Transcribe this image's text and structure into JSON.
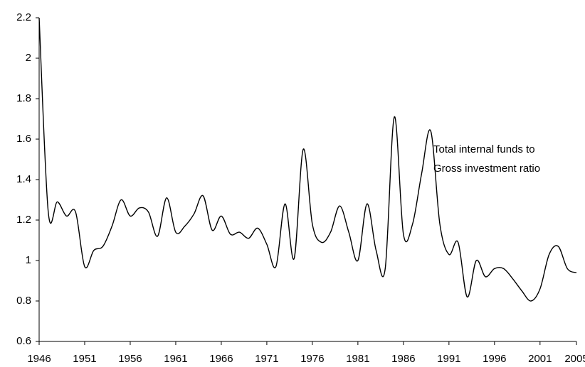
{
  "chart_data": {
    "type": "line",
    "x": [
      1946,
      1947,
      1948,
      1949,
      1950,
      1951,
      1952,
      1953,
      1954,
      1955,
      1956,
      1957,
      1958,
      1959,
      1960,
      1961,
      1962,
      1963,
      1964,
      1965,
      1966,
      1967,
      1968,
      1969,
      1970,
      1971,
      1972,
      1973,
      1974,
      1975,
      1976,
      1977,
      1978,
      1979,
      1980,
      1981,
      1982,
      1983,
      1984,
      1985,
      1986,
      1987,
      1988,
      1989,
      1990,
      1991,
      1992,
      1993,
      1994,
      1995,
      1996,
      1997,
      1998,
      1999,
      2000,
      2001,
      2002,
      2003,
      2004,
      2005
    ],
    "series": [
      {
        "color": "#000000",
        "values": [
          2.2,
          1.24,
          1.29,
          1.22,
          1.24,
          0.97,
          1.05,
          1.07,
          1.17,
          1.3,
          1.22,
          1.26,
          1.24,
          1.12,
          1.31,
          1.14,
          1.17,
          1.23,
          1.32,
          1.15,
          1.22,
          1.13,
          1.14,
          1.11,
          1.16,
          1.08,
          0.97,
          1.28,
          1.01,
          1.55,
          1.18,
          1.09,
          1.14,
          1.27,
          1.14,
          1.0,
          1.28,
          1.05,
          0.96,
          1.71,
          1.13,
          1.18,
          1.43,
          1.64,
          1.18,
          1.03,
          1.09,
          0.82,
          1.0,
          0.92,
          0.96,
          0.96,
          0.91,
          0.85,
          0.8,
          0.86,
          1.03,
          1.07,
          0.96,
          0.94
        ]
      }
    ],
    "annotation": [
      "Total internal funds to",
      "Gross investment ratio"
    ],
    "xlim": [
      1946,
      2005
    ],
    "xticks": [
      1946,
      1951,
      1956,
      1961,
      1966,
      1971,
      1976,
      1981,
      1986,
      1991,
      1996,
      2001,
      2005
    ],
    "ylim": [
      0.6,
      2.2
    ],
    "yticks": [
      0.6,
      0.8,
      1,
      1.2,
      1.4,
      1.6,
      1.8,
      2,
      2.2
    ]
  }
}
